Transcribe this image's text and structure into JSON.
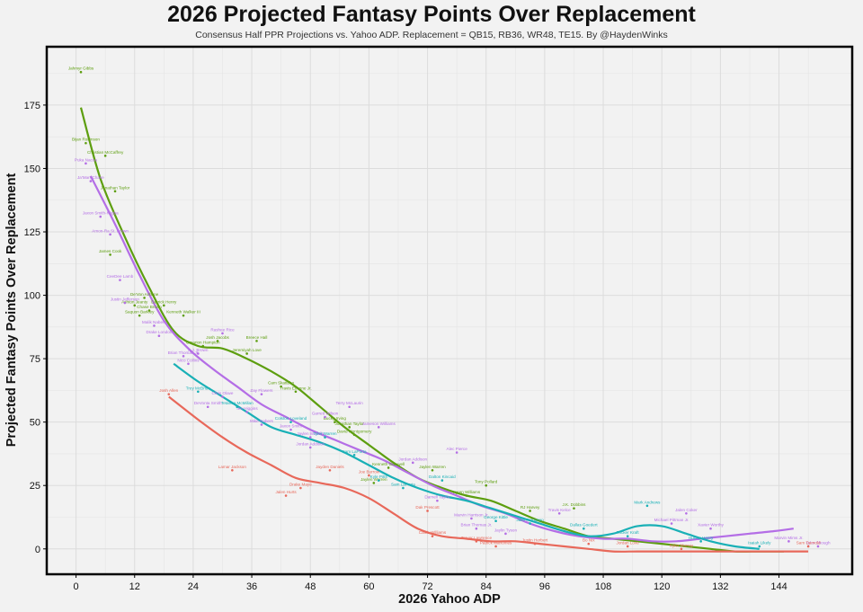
{
  "chart_data": {
    "type": "scatter",
    "title": "2026 Projected Fantasy Points Over Replacement",
    "subtitle": "Consensus Half PPR Projections vs. Yahoo ADP. Replacement = QB15, RB36, WR48, TE15. By @HaydenWinks",
    "xlabel": "2026 Yahoo ADP",
    "ylabel": "Projected Fantasy Points Over Replacement",
    "xlim": [
      -6,
      159
    ],
    "ylim": [
      -10,
      198
    ],
    "xticks": [
      "0",
      "12",
      "24",
      "36",
      "48",
      "60",
      "72",
      "84",
      "96",
      "108",
      "120",
      "132",
      "144"
    ],
    "yticks": [
      "0",
      "25",
      "50",
      "75",
      "100",
      "125",
      "150",
      "175"
    ],
    "grid": true,
    "legend": "none",
    "colors": {
      "QB": "#e8685a",
      "RB": "#5d9e0f",
      "WR": "#b46ee6",
      "TE": "#19b0b6"
    },
    "series": [
      {
        "color": "#5d9e0f",
        "points": [
          {
            "x": 1,
            "y": 188,
            "label": "Jahmyr Gibbs"
          },
          {
            "x": 2,
            "y": 160,
            "label": "Bijan Robinson"
          },
          {
            "x": 6,
            "y": 155,
            "label": "Christian McCaffrey"
          },
          {
            "x": 8,
            "y": 141,
            "label": "Jonathan Taylor"
          },
          {
            "x": 7,
            "y": 116,
            "label": "James Cook"
          },
          {
            "x": 14,
            "y": 99,
            "label": "De'Von Achane"
          },
          {
            "x": 12,
            "y": 96,
            "label": "Ashton Jeanty"
          },
          {
            "x": 15,
            "y": 94,
            "label": "Chase Brown"
          },
          {
            "x": 18,
            "y": 96,
            "label": "Derrick Henry"
          },
          {
            "x": 22,
            "y": 92,
            "label": "Kenneth Walker III"
          },
          {
            "x": 13,
            "y": 92,
            "label": "Saquon Barkley"
          },
          {
            "x": 26,
            "y": 80,
            "label": "Omarion Hampton"
          },
          {
            "x": 29,
            "y": 82,
            "label": "Josh Jacobs"
          },
          {
            "x": 37,
            "y": 82,
            "label": "Breece Hall"
          },
          {
            "x": 35,
            "y": 77,
            "label": "Jeremiyah Love"
          },
          {
            "x": 42,
            "y": 64,
            "label": "Cam Skattebo"
          },
          {
            "x": 45,
            "y": 62,
            "label": "Travis Etienne Jr."
          },
          {
            "x": 53,
            "y": 50,
            "label": "Bucky Irving"
          },
          {
            "x": 56,
            "y": 48,
            "label": "Jonathan Taylor"
          },
          {
            "x": 57,
            "y": 45,
            "label": "David Montgomery"
          },
          {
            "x": 64,
            "y": 32,
            "label": "Kenneth Gainwell"
          },
          {
            "x": 73,
            "y": 31,
            "label": "Jaylen Warren"
          },
          {
            "x": 61,
            "y": 26,
            "label": "Jaylen Warren"
          },
          {
            "x": 84,
            "y": 25,
            "label": "Tony Pollard"
          },
          {
            "x": 80,
            "y": 21,
            "label": "Kyren Williams"
          },
          {
            "x": 93,
            "y": 15,
            "label": "RJ Harvey"
          },
          {
            "x": 102,
            "y": 16,
            "label": "J.K. Dobbins"
          }
        ]
      },
      {
        "color": "#b46ee6",
        "points": [
          {
            "x": 2,
            "y": 152,
            "label": "Puka Nacua"
          },
          {
            "x": 3,
            "y": 145,
            "label": "Ja'Marr Chase"
          },
          {
            "x": 5,
            "y": 131,
            "label": "Jaxon Smith-Njigba"
          },
          {
            "x": 7,
            "y": 124,
            "label": "Amon-Ra St. Brown"
          },
          {
            "x": 9,
            "y": 106,
            "label": "CeeDee Lamb"
          },
          {
            "x": 10,
            "y": 97,
            "label": "Justin Jefferson"
          },
          {
            "x": 16,
            "y": 88,
            "label": "Malik Nabers"
          },
          {
            "x": 17,
            "y": 84,
            "label": "Drake London"
          },
          {
            "x": 30,
            "y": 85,
            "label": "Rashee Rice"
          },
          {
            "x": 22,
            "y": 76,
            "label": "Brian Thomas Jr."
          },
          {
            "x": 25,
            "y": 77,
            "label": "A.J. Brown"
          },
          {
            "x": 23,
            "y": 73,
            "label": "Nico Collins"
          },
          {
            "x": 30,
            "y": 60,
            "label": "Chris Olave"
          },
          {
            "x": 27,
            "y": 56,
            "label": "DeVonta Smith"
          },
          {
            "x": 35,
            "y": 54,
            "label": "Tee Higgins"
          },
          {
            "x": 38,
            "y": 61,
            "label": "Zay Flowers"
          },
          {
            "x": 38,
            "y": 49,
            "label": "Mike Nabers"
          },
          {
            "x": 44,
            "y": 47,
            "label": "Jaxon Smith"
          },
          {
            "x": 48,
            "y": 44,
            "label": "Jaylen Waddle"
          },
          {
            "x": 51,
            "y": 52,
            "label": "Garrett Wilson"
          },
          {
            "x": 48,
            "y": 40,
            "label": "Jordan Addison"
          },
          {
            "x": 56,
            "y": 56,
            "label": "Terry McLaurin"
          },
          {
            "x": 62,
            "y": 48,
            "label": "Jameson Williams"
          },
          {
            "x": 69,
            "y": 34,
            "label": "Jordan Addison"
          },
          {
            "x": 78,
            "y": 38,
            "label": "Alec Pierce"
          },
          {
            "x": 74,
            "y": 19,
            "label": "Darnell Taylor"
          },
          {
            "x": 81,
            "y": 12,
            "label": "Marvin Harrison Jr."
          },
          {
            "x": 82,
            "y": 8,
            "label": "Brian Thomas Jr."
          },
          {
            "x": 88,
            "y": 6,
            "label": "Jaylin Tyson"
          },
          {
            "x": 99,
            "y": 14,
            "label": "Travis Kelce"
          },
          {
            "x": 125,
            "y": 14,
            "label": "Jalen Coker"
          },
          {
            "x": 122,
            "y": 10,
            "label": "Michael Pittman Jr."
          },
          {
            "x": 130,
            "y": 8,
            "label": "Xavier Worthy"
          },
          {
            "x": 146,
            "y": 3,
            "label": "Marvin Mims Jr."
          },
          {
            "x": 152,
            "y": 1,
            "label": "Tyler Shough"
          }
        ]
      },
      {
        "color": "#19b0b6",
        "points": [
          {
            "x": 25,
            "y": 62,
            "label": "Trey McBride"
          },
          {
            "x": 33,
            "y": 56,
            "label": "Tetairoa McMillan"
          },
          {
            "x": 44,
            "y": 50,
            "label": "Colston Loveland"
          },
          {
            "x": 51,
            "y": 44,
            "label": "Tyler Warren"
          },
          {
            "x": 57,
            "y": 37,
            "label": "Sam LaPorta"
          },
          {
            "x": 62,
            "y": 27,
            "label": "Kyle Pitts"
          },
          {
            "x": 67,
            "y": 24,
            "label": "Sam LaPorta"
          },
          {
            "x": 75,
            "y": 27,
            "label": "Dalton Kincaid"
          },
          {
            "x": 86,
            "y": 11,
            "label": "George Kittle"
          },
          {
            "x": 93,
            "y": 10,
            "label": "Jake Ferguson"
          },
          {
            "x": 104,
            "y": 8,
            "label": "Dallas Goedert"
          },
          {
            "x": 113,
            "y": 5,
            "label": "Tucker Kraft"
          },
          {
            "x": 117,
            "y": 17,
            "label": "Mark Andrews"
          },
          {
            "x": 128,
            "y": 3,
            "label": "Hunter Henry"
          },
          {
            "x": 140,
            "y": 1,
            "label": "Isaiah Likely"
          }
        ]
      },
      {
        "color": "#e8685a",
        "points": [
          {
            "x": 19,
            "y": 61,
            "label": "Josh Allen"
          },
          {
            "x": 32,
            "y": 31,
            "label": "Lamar Jackson"
          },
          {
            "x": 43,
            "y": 21,
            "label": "Jalen Hurts"
          },
          {
            "x": 46,
            "y": 24,
            "label": "Drake Maye"
          },
          {
            "x": 52,
            "y": 31,
            "label": "Jayden Daniels"
          },
          {
            "x": 60,
            "y": 29,
            "label": "Joe Burrow"
          },
          {
            "x": 72,
            "y": 15,
            "label": "Dak Prescott"
          },
          {
            "x": 73,
            "y": 5,
            "label": "Caleb Williams"
          },
          {
            "x": 82,
            "y": 3,
            "label": "Trevor Lawrence"
          },
          {
            "x": 86,
            "y": 1,
            "label": "Patrick Mahomes"
          },
          {
            "x": 94,
            "y": 2,
            "label": "Justin Herbert"
          },
          {
            "x": 105,
            "y": 2,
            "label": "Bo Nix"
          },
          {
            "x": 113,
            "y": 1,
            "label": "Jordan Love"
          },
          {
            "x": 124,
            "y": 0,
            "label": "Kyler Murray"
          },
          {
            "x": 150,
            "y": 1,
            "label": "Sam Darnold"
          }
        ]
      }
    ],
    "trend_lines": [
      {
        "color": "#5d9e0f",
        "x": [
          1,
          5,
          10,
          15,
          20,
          25,
          30,
          35,
          40,
          45,
          50,
          55,
          60,
          65,
          70,
          75,
          80,
          85,
          90,
          95,
          100,
          105,
          110,
          115,
          120,
          125,
          130,
          135,
          140,
          145
        ],
        "y": [
          174,
          146,
          123,
          103,
          86,
          80,
          79,
          75,
          70,
          64,
          56,
          48,
          41,
          34,
          28,
          24,
          21,
          19,
          15,
          11,
          8,
          5,
          4,
          3,
          2,
          1,
          0,
          -1,
          -1,
          -1
        ]
      },
      {
        "color": "#b46ee6",
        "x": [
          3,
          8,
          13,
          18,
          23,
          28,
          33,
          38,
          43,
          48,
          53,
          58,
          63,
          68,
          73,
          78,
          83,
          88,
          93,
          98,
          103,
          108,
          113,
          118,
          123,
          128,
          133,
          138,
          143,
          147
        ],
        "y": [
          147,
          128,
          108,
          90,
          79,
          71,
          64,
          57,
          52,
          47,
          43,
          39,
          35,
          30,
          25,
          21,
          17,
          14,
          10,
          7,
          5,
          4,
          4,
          3,
          3,
          4,
          5,
          6,
          7,
          8
        ]
      },
      {
        "color": "#19b0b6",
        "x": [
          20,
          25,
          30,
          35,
          40,
          45,
          50,
          55,
          60,
          65,
          70,
          75,
          80,
          85,
          90,
          95,
          100,
          105,
          110,
          115,
          120,
          125,
          130,
          135,
          140
        ],
        "y": [
          73,
          66,
          60,
          54,
          48,
          45,
          42,
          38,
          33,
          28,
          24,
          21,
          19,
          16,
          13,
          10,
          7,
          5,
          6,
          9,
          9,
          6,
          3,
          1,
          0
        ]
      },
      {
        "color": "#e8685a",
        "x": [
          19,
          25,
          30,
          35,
          40,
          45,
          50,
          55,
          60,
          65,
          70,
          75,
          80,
          85,
          90,
          95,
          100,
          105,
          110,
          115,
          120,
          125,
          130,
          135,
          140,
          145,
          150
        ],
        "y": [
          60,
          51,
          44,
          38,
          33,
          28,
          26,
          24,
          20,
          14,
          8,
          5,
          4,
          3,
          3,
          2,
          1,
          0,
          -1,
          -1,
          -1,
          -1,
          -1,
          -1,
          -1,
          -1,
          -1
        ]
      }
    ]
  }
}
